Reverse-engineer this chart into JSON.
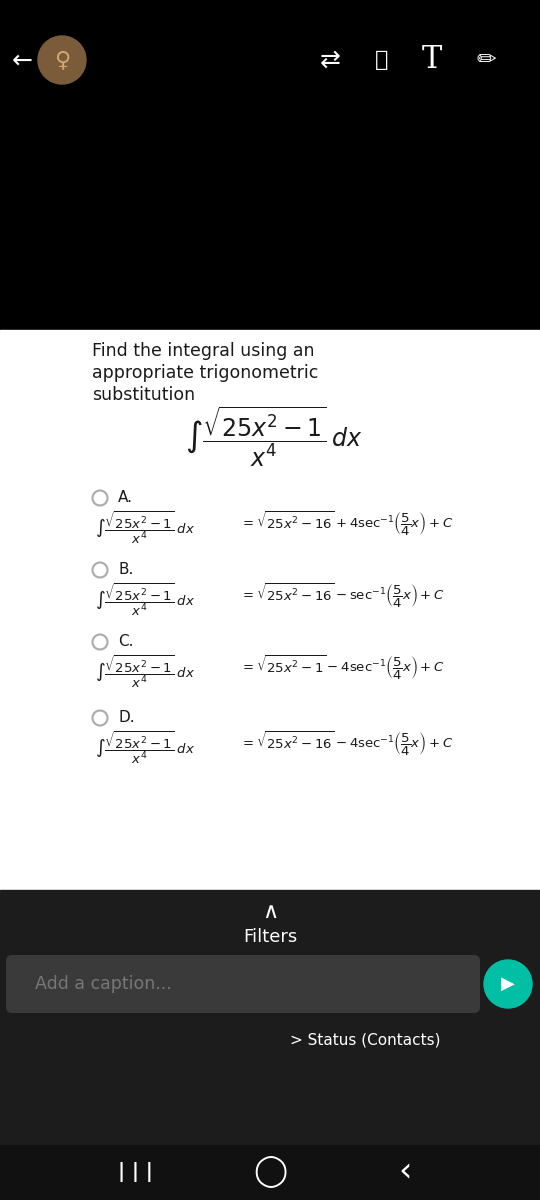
{
  "bg_top_color": "#000000",
  "bg_white_color": "#ffffff",
  "bg_bottom_color": "#1c1c1c",
  "bg_nav_color": "#111111",
  "text_color": "#1a1a1a",
  "white_text": "#ffffff",
  "gray_text": "#888888",
  "caption_bg": "#2a2a2a",
  "send_btn_color": "#00bfa5",
  "circle_edge_color": "#aaaaaa",
  "question_lines": [
    "Find the integral using an",
    "appropriate trigonometric",
    "substitution"
  ],
  "option_labels": [
    "A.",
    "B.",
    "C.",
    "D."
  ],
  "option_lhs": [
    "$\\int \\dfrac{\\sqrt{25x^2-1}}{x^4}\\,dx$",
    "$\\int \\dfrac{\\sqrt{25x^2-1}}{x^4}\\,dx$",
    "$\\int \\dfrac{\\sqrt{25x^2-1}}{x^4}\\,dx$",
    "$\\int \\dfrac{\\sqrt{25x^2-1}}{x^4}\\,dx$"
  ],
  "option_rhs": [
    "$= \\sqrt{25x^2-16} + 4\\sec^{-1}\\!\\left(\\dfrac{5}{4}x\\right) + C$",
    "$= \\sqrt{25x^2-16} - \\sec^{-1}\\!\\left(\\dfrac{5}{4}x\\right) + C$",
    "$= \\sqrt{25x^2-1} - 4\\sec^{-1}\\!\\left(\\dfrac{5}{4}x\\right) + C$",
    "$= \\sqrt{25x^2-16} - 4\\sec^{-1}\\!\\left(\\dfrac{5}{4}x\\right) + C$"
  ],
  "main_integral": "$\\int \\dfrac{\\sqrt{25x^2-1}}{x^4}\\,dx$",
  "filters_text": "Filters",
  "caption_placeholder": "Add a caption...",
  "status_text": "> Status (Contacts)"
}
